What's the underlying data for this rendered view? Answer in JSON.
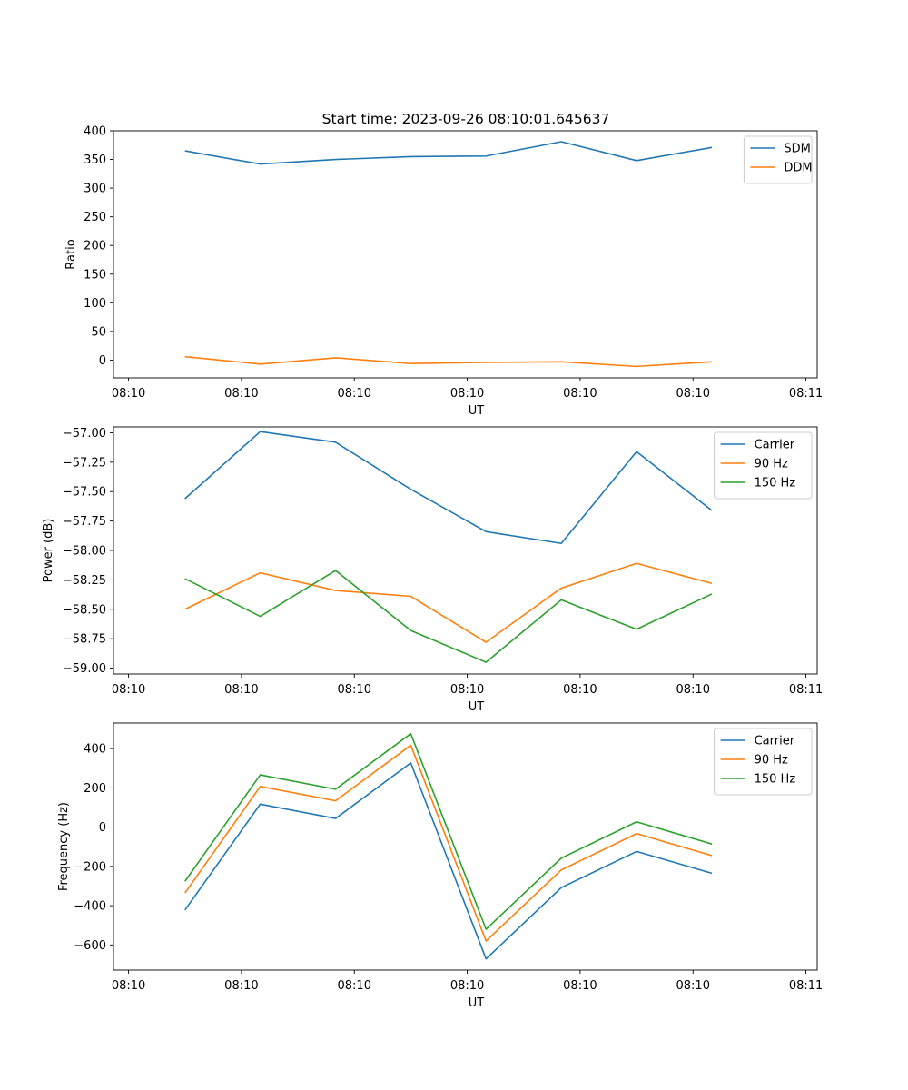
{
  "figure_title": "Start time: 2023-09-26 08:10:01.645637",
  "chart_data": [
    {
      "type": "line",
      "title": "Start time: 2023-09-26 08:10:01.645637",
      "xlabel": "UT",
      "ylabel": "Ratio",
      "x": [
        1,
        2,
        3,
        4,
        5,
        6,
        7,
        8
      ],
      "xlim": [
        0.05,
        9.4
      ],
      "xticks": [
        0.25,
        1.75,
        3.25,
        4.75,
        6.25,
        7.75,
        9.25
      ],
      "xtick_labels": [
        "08:10",
        "08:10",
        "08:10",
        "08:10",
        "08:10",
        "08:10",
        "08:11"
      ],
      "ylim": [
        -31,
        400
      ],
      "yticks": [
        0,
        50,
        100,
        150,
        200,
        250,
        300,
        350,
        400
      ],
      "ytick_labels": [
        "0",
        "50",
        "100",
        "150",
        "200",
        "250",
        "300",
        "350",
        "400"
      ],
      "legend": "top-right",
      "series": [
        {
          "name": "SDM",
          "color": "#1f77b4",
          "values": [
            365,
            342,
            350,
            355,
            356,
            381,
            348,
            371
          ]
        },
        {
          "name": "DDM",
          "color": "#ff7f0e",
          "values": [
            6,
            -7,
            4,
            -6,
            -4,
            -3,
            -11,
            -3
          ]
        }
      ]
    },
    {
      "type": "line",
      "title": "",
      "xlabel": "UT",
      "ylabel": "Power (dB)",
      "x": [
        1,
        2,
        3,
        4,
        5,
        6,
        7,
        8
      ],
      "xlim": [
        0.05,
        9.4
      ],
      "xticks": [
        0.25,
        1.75,
        3.25,
        4.75,
        6.25,
        7.75,
        9.25
      ],
      "xtick_labels": [
        "08:10",
        "08:10",
        "08:10",
        "08:10",
        "08:10",
        "08:10",
        "08:11"
      ],
      "ylim": [
        -59.05,
        -56.95
      ],
      "yticks": [
        -59.0,
        -58.75,
        -58.5,
        -58.25,
        -58.0,
        -57.75,
        -57.5,
        -57.25,
        -57.0
      ],
      "ytick_labels": [
        "−59.00",
        "−58.75",
        "−58.50",
        "−58.25",
        "−58.00",
        "−57.75",
        "−57.50",
        "−57.25",
        "−57.00"
      ],
      "legend": "top-right",
      "series": [
        {
          "name": "Carrier",
          "color": "#1f77b4",
          "values": [
            -57.56,
            -56.99,
            -57.08,
            -57.48,
            -57.84,
            -57.94,
            -57.16,
            -57.66
          ]
        },
        {
          "name": "90 Hz",
          "color": "#ff7f0e",
          "values": [
            -58.5,
            -58.19,
            -58.34,
            -58.39,
            -58.78,
            -58.32,
            -58.11,
            -58.28
          ]
        },
        {
          "name": "150 Hz",
          "color": "#2ca02c",
          "values": [
            -58.24,
            -58.56,
            -58.17,
            -58.68,
            -58.95,
            -58.42,
            -58.67,
            -58.37
          ]
        }
      ]
    },
    {
      "type": "line",
      "title": "",
      "xlabel": "UT",
      "ylabel": "Frequency (Hz)",
      "x": [
        1,
        2,
        3,
        4,
        5,
        6,
        7,
        8
      ],
      "xlim": [
        0.05,
        9.4
      ],
      "xticks": [
        0.25,
        1.75,
        3.25,
        4.75,
        6.25,
        7.75,
        9.25
      ],
      "xtick_labels": [
        "08:10",
        "08:10",
        "08:10",
        "08:10",
        "08:10",
        "08:10",
        "08:11"
      ],
      "ylim": [
        -728,
        530
      ],
      "yticks": [
        -600,
        -400,
        -200,
        0,
        200,
        400
      ],
      "ytick_labels": [
        "−600",
        "−400",
        "−200",
        "0",
        "200",
        "400"
      ],
      "legend": "top-right",
      "series": [
        {
          "name": "Carrier",
          "color": "#1f77b4",
          "values": [
            -422,
            117,
            44,
            327,
            -671,
            -308,
            -124,
            -235
          ]
        },
        {
          "name": "90 Hz",
          "color": "#ff7f0e",
          "values": [
            -335,
            207,
            134,
            417,
            -580,
            -218,
            -33,
            -145
          ]
        },
        {
          "name": "150 Hz",
          "color": "#2ca02c",
          "values": [
            -276,
            266,
            193,
            476,
            -520,
            -158,
            27,
            -86
          ]
        }
      ]
    }
  ]
}
